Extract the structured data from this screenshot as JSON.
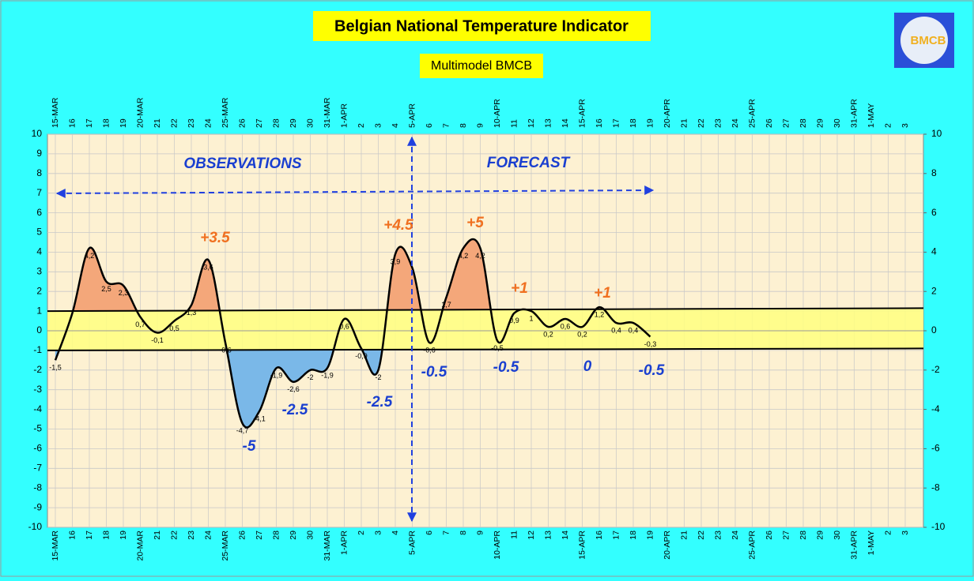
{
  "logo": "BMCB",
  "chart_data": {
    "type": "line",
    "title": "Belgian National Temperature Indicator",
    "subtitle": "Multimodel BMCB",
    "categories": [
      "15-MAR",
      "16",
      "17",
      "18",
      "19",
      "20-MAR",
      "21",
      "22",
      "23",
      "24",
      "25-MAR",
      "26",
      "27",
      "28",
      "29",
      "30",
      "31-MAR",
      "1-APR",
      "2",
      "3",
      "4",
      "5-APR",
      "6",
      "7",
      "8",
      "9",
      "10-APR",
      "11",
      "12",
      "13",
      "14",
      "15-APR",
      "16",
      "17",
      "18",
      "19",
      "20-APR",
      "21",
      "22",
      "23",
      "24",
      "25-APR",
      "26",
      "27",
      "28",
      "29",
      "30",
      "31-APR",
      "1-MAY",
      "2",
      "3"
    ],
    "values": [
      -1.5,
      0.9,
      4.2,
      2.5,
      2.3,
      0.7,
      -0.1,
      0.5,
      1.3,
      3.6,
      -0.6,
      -4.7,
      -4.1,
      -1.9,
      -2.6,
      -2,
      -1.9,
      0.6,
      -0.9,
      -2,
      3.9,
      3.2,
      -0.6,
      1.7,
      4.2,
      4.2,
      -0.5,
      0.9,
      1,
      0.2,
      0.6,
      0.2,
      1.2,
      0.4,
      0.4,
      -0.3,
      null,
      null,
      null,
      null,
      null,
      null,
      null,
      null,
      null,
      null,
      null,
      null,
      null,
      null,
      null
    ],
    "value_labels": [
      "-1,5",
      null,
      "4,2",
      "2,5",
      "2,3",
      "0,7",
      "-0,1",
      "0,5",
      "1,3",
      "3,6",
      "-0,6",
      "-4,7",
      "-4,1",
      "-1,9",
      "-2,6",
      "-2",
      "-1,9",
      "0,6",
      "-0,9",
      "-2",
      "3,9",
      null,
      "-0,6",
      "1,7",
      "4,2",
      "4,2",
      "-0,5",
      "0,9",
      "1",
      "0,2",
      "0,6",
      "0,2",
      "1,2",
      "0,4",
      "0,4",
      "-0,3",
      null,
      null,
      null,
      null,
      null,
      null,
      null,
      null,
      null,
      null,
      null,
      null,
      null,
      null,
      null
    ],
    "color": "#000000",
    "above_color": "#f4a77a",
    "below_color": "#7ab8e8",
    "band_color": "#ffff80",
    "band_upper": [
      1,
      1.15
    ],
    "band_lower": [
      -1,
      -0.9
    ],
    "ylim": [
      -10,
      10
    ],
    "yticks": [
      -10,
      -9,
      -8,
      -7,
      -6,
      -5,
      -4,
      -3,
      -2,
      -1,
      0,
      1,
      2,
      3,
      4,
      5,
      6,
      7,
      8,
      9,
      10
    ],
    "y2lim": [
      -10,
      10
    ],
    "y2ticks": [
      -10,
      -8,
      -6,
      -4,
      -2,
      0,
      2,
      4,
      6,
      8,
      10
    ],
    "grid": true,
    "annotations": [
      {
        "text": "OBSERVATIONS",
        "color": "#1a3fd0"
      },
      {
        "text": "FORECAST",
        "color": "#1a3fd0"
      },
      {
        "text": "+3.5",
        "color": "#f07020"
      },
      {
        "text": "+4.5",
        "color": "#f07020"
      },
      {
        "text": "+5",
        "color": "#f07020"
      },
      {
        "text": "+1",
        "color": "#f07020"
      },
      {
        "text": "+1",
        "color": "#f07020"
      },
      {
        "text": "-5",
        "color": "#1a3fd0"
      },
      {
        "text": "-2.5",
        "color": "#1a3fd0"
      },
      {
        "text": "-2.5",
        "color": "#1a3fd0"
      },
      {
        "text": "-0.5",
        "color": "#1a3fd0"
      },
      {
        "text": "-0.5",
        "color": "#1a3fd0"
      },
      {
        "text": "0",
        "color": "#1a3fd0"
      },
      {
        "text": "-0.5",
        "color": "#1a3fd0"
      }
    ]
  }
}
